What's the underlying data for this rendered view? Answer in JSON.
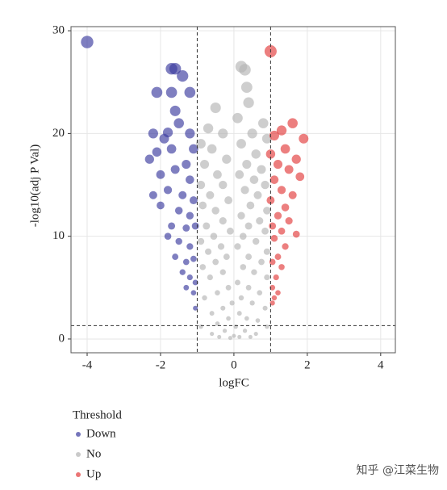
{
  "chart_data": {
    "type": "scatter",
    "xlabel": "logFC",
    "ylabel": "-log10(adj P Val)",
    "xlim": [
      -4.44,
      4.4
    ],
    "ylim": [
      -1.34,
      30.4
    ],
    "xticks": [
      -4,
      -2,
      0,
      2,
      4
    ],
    "yticks": [
      0,
      10,
      20,
      30
    ],
    "grid": true,
    "vlines": [
      -1,
      1
    ],
    "hline": 1.3,
    "legend_title": "Threshold",
    "series": [
      {
        "name": "Down",
        "color": "#3a3a9e",
        "x": [
          -4,
          -1.7,
          -1.6,
          -1.4,
          -2.1,
          -1.7,
          -1.2,
          -1.6,
          -1.5,
          -2.2,
          -1.8,
          -1.2,
          -1.9,
          -2.3,
          -2.1,
          -1.7,
          -1.3,
          -1.1,
          -2,
          -1.6,
          -1.2,
          -2.2,
          -1.8,
          -1.4,
          -1.1,
          -2,
          -1.5,
          -1.2,
          -1.7,
          -1.3,
          -1.05,
          -1.8,
          -1.5,
          -1.2,
          -1.6,
          -1.3,
          -1.1,
          -1.4,
          -1.2,
          -1.05,
          -1.3,
          -1.1,
          -1.05
        ],
        "values": [
          28.9,
          26.3,
          26.3,
          25.6,
          24,
          24,
          24,
          22.2,
          21,
          20,
          20.1,
          20,
          19.5,
          17.5,
          18.2,
          18.5,
          17,
          18.5,
          16,
          16.5,
          15.5,
          14,
          14.5,
          14,
          13.5,
          13,
          12.5,
          12,
          11,
          10.8,
          11,
          10,
          9.5,
          9,
          8,
          7.5,
          7.8,
          6.5,
          6,
          5.5,
          5,
          4.5,
          3
        ]
      },
      {
        "name": "No",
        "color": "#b4b4b4",
        "x": [
          0.2,
          0.3,
          0.35,
          0.4,
          -0.5,
          0.1,
          0.8,
          -0.7,
          -0.3,
          0.5,
          0.9,
          -0.9,
          0.2,
          -0.6,
          0.6,
          -0.2,
          0.35,
          -0.8,
          0.75,
          -0.45,
          0.15,
          0.55,
          -0.9,
          -0.3,
          0.85,
          0.3,
          -0.65,
          0.65,
          -0.15,
          0.45,
          -0.85,
          0.9,
          -0.5,
          0.2,
          -0.3,
          0.7,
          -0.75,
          0.4,
          -0.1,
          0.85,
          -0.55,
          0.25,
          -0.9,
          0.6,
          -0.35,
          0.1,
          0.9,
          -0.7,
          0.4,
          -0.2,
          0.75,
          -0.5,
          -0.85,
          0.25,
          0.55,
          -0.3,
          0.9,
          -0.65,
          0.1,
          -0.15,
          0.4,
          -0.45,
          0.7,
          -0.8,
          0.2,
          -0.05,
          0.5,
          -0.3,
          0.85,
          -0.6,
          0.15,
          0.35,
          -0.15,
          0.65,
          -0.45,
          0.05,
          -0.9,
          0.9,
          0.3,
          -0.25,
          0.6,
          -0.6,
          0,
          0.15,
          -0.1,
          0.45,
          -0.4
        ],
        "values": [
          26.5,
          26.2,
          24.5,
          23,
          22.5,
          21.5,
          21,
          20.5,
          20,
          20,
          19.5,
          19,
          19,
          18.5,
          18,
          17.5,
          17,
          17,
          16.5,
          16,
          16,
          15.5,
          15,
          15,
          15,
          14.5,
          14,
          14,
          13.5,
          13,
          13,
          12.5,
          12.5,
          12,
          11.5,
          11.5,
          11,
          11,
          10.5,
          10.5,
          10,
          10,
          9.5,
          9.5,
          9,
          9,
          8.5,
          8.5,
          8,
          8,
          7.5,
          7.5,
          7,
          7,
          6.5,
          6.5,
          6,
          6,
          5.5,
          5,
          5,
          4.5,
          4.5,
          4,
          4,
          3.5,
          3.5,
          3,
          3,
          2.5,
          2.5,
          2,
          2,
          1.8,
          1.5,
          1.2,
          1.2,
          1.2,
          0.8,
          0.8,
          0.5,
          0.5,
          0.3,
          0.2,
          0.1,
          0.2,
          0.2
        ]
      },
      {
        "name": "Up",
        "color": "#e23a3a",
        "x": [
          1,
          1.6,
          1.3,
          1.1,
          1.9,
          1.4,
          1,
          1.7,
          1.2,
          1.5,
          1.8,
          1.1,
          1.3,
          1.6,
          1,
          1.4,
          1.2,
          1.5,
          1.05,
          1.3,
          1.7,
          1.1,
          1.4,
          1.2,
          1.05,
          1.3,
          1.15,
          1.05,
          1.2,
          1.1,
          1.05
        ],
        "values": [
          28,
          21,
          20.3,
          19.8,
          19.5,
          18.5,
          18,
          17.5,
          17,
          16.5,
          15.8,
          15.5,
          14.5,
          14,
          13.5,
          12.8,
          12,
          11.5,
          11,
          10.5,
          10.2,
          9.8,
          9,
          8,
          7.5,
          7,
          6,
          5,
          4.5,
          4,
          3.5
        ]
      }
    ],
    "watermark": "知乎 @江菜生物"
  }
}
